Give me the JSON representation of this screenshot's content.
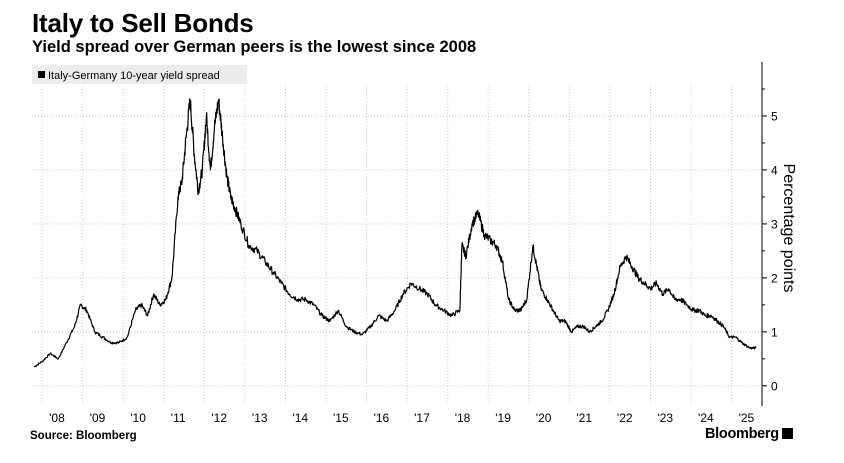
{
  "header": {
    "title": "Italy to Sell Bonds",
    "subtitle": "Yield spread over German peers is the lowest since 2008"
  },
  "footer": {
    "source": "Source: Bloomberg",
    "brand": "Bloomberg"
  },
  "colors": {
    "line": "#000000",
    "grid": "#c8c8c8",
    "legend_bg": "#ececec"
  },
  "chart_data": {
    "type": "line",
    "title": "Italy to Sell Bonds",
    "subtitle": "Yield spread over German peers is the lowest since 2008",
    "xlabel": "",
    "ylabel": "Percentage points",
    "legend": "top-left",
    "grid": true,
    "xlim": [
      2007.75,
      2025.75
    ],
    "ylim": [
      -0.3,
      6.0
    ],
    "x_ticks": [
      {
        "label": "'08",
        "x": 2008.0
      },
      {
        "label": "'09",
        "x": 2009.0
      },
      {
        "label": "'10",
        "x": 2010.0
      },
      {
        "label": "'11",
        "x": 2011.0
      },
      {
        "label": "'12",
        "x": 2012.0
      },
      {
        "label": "'13",
        "x": 2013.0
      },
      {
        "label": "'14",
        "x": 2014.0
      },
      {
        "label": "'15",
        "x": 2015.0
      },
      {
        "label": "'16",
        "x": 2016.0
      },
      {
        "label": "'17",
        "x": 2017.0
      },
      {
        "label": "'18",
        "x": 2018.0
      },
      {
        "label": "'19",
        "x": 2019.0
      },
      {
        "label": "'20",
        "x": 2020.0
      },
      {
        "label": "'21",
        "x": 2021.0
      },
      {
        "label": "'22",
        "x": 2022.0
      },
      {
        "label": "'23",
        "x": 2023.0
      },
      {
        "label": "'24",
        "x": 2024.0
      },
      {
        "label": "'25",
        "x": 2025.0
      }
    ],
    "y_ticks": [
      0,
      1,
      2,
      3,
      4,
      5
    ],
    "series": [
      {
        "name": "Italy-Germany 10-year yield spread",
        "x": [
          2007.8,
          2008.0,
          2008.2,
          2008.4,
          2008.6,
          2008.8,
          2008.95,
          2009.1,
          2009.3,
          2009.5,
          2009.7,
          2009.9,
          2010.1,
          2010.3,
          2010.45,
          2010.6,
          2010.75,
          2010.9,
          2011.05,
          2011.2,
          2011.35,
          2011.45,
          2011.55,
          2011.65,
          2011.75,
          2011.85,
          2011.95,
          2012.05,
          2012.15,
          2012.25,
          2012.35,
          2012.45,
          2012.55,
          2012.65,
          2012.75,
          2012.9,
          2013.1,
          2013.3,
          2013.5,
          2013.7,
          2013.9,
          2014.1,
          2014.3,
          2014.5,
          2014.7,
          2014.9,
          2015.1,
          2015.3,
          2015.5,
          2015.7,
          2015.9,
          2016.1,
          2016.3,
          2016.5,
          2016.7,
          2016.9,
          2017.1,
          2017.3,
          2017.5,
          2017.7,
          2017.9,
          2018.1,
          2018.3,
          2018.35,
          2018.45,
          2018.6,
          2018.75,
          2018.9,
          2019.05,
          2019.2,
          2019.35,
          2019.5,
          2019.65,
          2019.8,
          2019.95,
          2020.1,
          2020.2,
          2020.3,
          2020.45,
          2020.6,
          2020.75,
          2020.9,
          2021.05,
          2021.2,
          2021.35,
          2021.5,
          2021.65,
          2021.8,
          2021.95,
          2022.1,
          2022.25,
          2022.4,
          2022.55,
          2022.7,
          2022.85,
          2023.0,
          2023.15,
          2023.3,
          2023.45,
          2023.6,
          2023.75,
          2023.9,
          2024.05,
          2024.2,
          2024.35,
          2024.5,
          2024.65,
          2024.8,
          2024.95,
          2025.1,
          2025.25,
          2025.45,
          2025.6
        ],
        "y": [
          0.35,
          0.45,
          0.6,
          0.5,
          0.8,
          1.1,
          1.5,
          1.4,
          1.0,
          0.9,
          0.8,
          0.8,
          0.9,
          1.4,
          1.5,
          1.3,
          1.7,
          1.5,
          1.6,
          2.0,
          3.5,
          3.8,
          4.6,
          5.3,
          4.3,
          3.6,
          4.0,
          5.0,
          4.0,
          4.8,
          5.3,
          4.6,
          3.9,
          3.5,
          3.3,
          3.0,
          2.6,
          2.5,
          2.3,
          2.1,
          1.9,
          1.7,
          1.6,
          1.6,
          1.5,
          1.3,
          1.2,
          1.4,
          1.1,
          1.0,
          0.95,
          1.1,
          1.3,
          1.2,
          1.4,
          1.7,
          1.9,
          1.8,
          1.7,
          1.5,
          1.4,
          1.3,
          1.4,
          2.6,
          2.4,
          3.0,
          3.2,
          2.8,
          2.7,
          2.6,
          2.3,
          1.6,
          1.4,
          1.4,
          1.6,
          2.6,
          2.2,
          1.8,
          1.6,
          1.4,
          1.2,
          1.2,
          1.0,
          1.1,
          1.1,
          1.0,
          1.1,
          1.2,
          1.4,
          1.7,
          2.2,
          2.4,
          2.2,
          2.0,
          1.9,
          1.8,
          1.9,
          1.7,
          1.8,
          1.6,
          1.6,
          1.5,
          1.4,
          1.4,
          1.3,
          1.3,
          1.2,
          1.1,
          0.9,
          0.9,
          0.8,
          0.7,
          0.7
        ]
      }
    ]
  }
}
